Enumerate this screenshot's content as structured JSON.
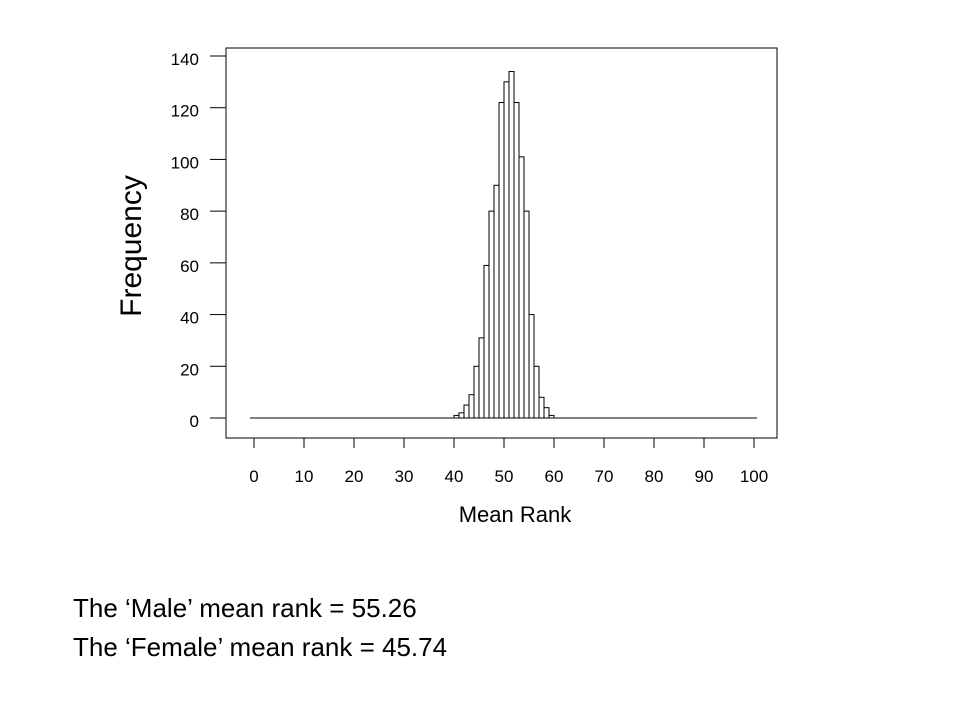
{
  "chart_data": {
    "type": "bar",
    "title": "",
    "xlabel": "Mean Rank",
    "ylabel": "Frequency",
    "xlim": [
      0,
      100
    ],
    "ylim": [
      0,
      140
    ],
    "x_ticks": [
      0,
      10,
      20,
      30,
      40,
      50,
      60,
      70,
      80,
      90,
      100
    ],
    "y_ticks": [
      0,
      20,
      40,
      60,
      80,
      100,
      120,
      140
    ],
    "grid": false,
    "bin_width": 1,
    "x": [
      40,
      41,
      42,
      43,
      44,
      45,
      46,
      47,
      48,
      49,
      50,
      51,
      52,
      53,
      54,
      55,
      56,
      57,
      58,
      59
    ],
    "values": [
      1,
      2,
      5,
      9,
      20,
      31,
      59,
      80,
      90,
      122,
      130,
      134,
      122,
      101,
      80,
      40,
      20,
      8,
      4,
      1
    ]
  },
  "notes": {
    "male": "The ‘Male’ mean rank = 55.26",
    "female": "The ‘Female’ mean rank = 45.74"
  }
}
